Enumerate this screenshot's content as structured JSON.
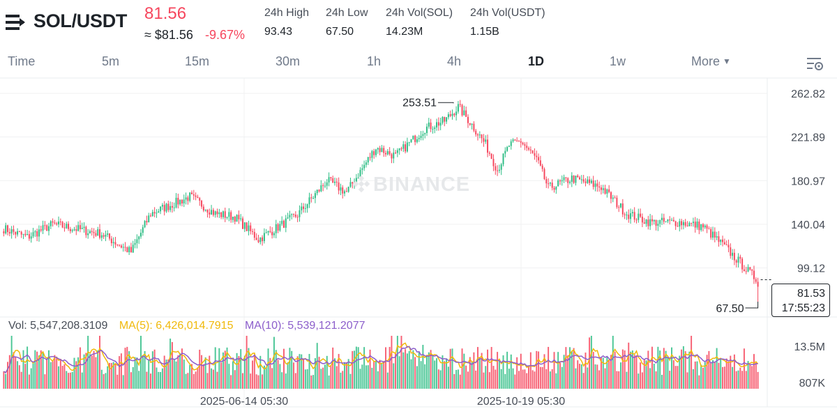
{
  "header": {
    "pair": "SOL/USDT",
    "last_price": "81.56",
    "approx_usd": "≈ $81.56",
    "change_pct": "-9.67%",
    "stats": [
      {
        "label": "24h High",
        "value": "93.43"
      },
      {
        "label": "24h Low",
        "value": "67.50"
      },
      {
        "label": "24h Vol(SOL)",
        "value": "14.23M"
      },
      {
        "label": "24h Vol(USDT)",
        "value": "1.15B"
      }
    ]
  },
  "intervals": {
    "items": [
      "Time",
      "5m",
      "15m",
      "30m",
      "1h",
      "4h",
      "1D",
      "1w",
      "More"
    ],
    "active": "1D"
  },
  "watermark": "BINANCE",
  "price_axis": [
    "262.82",
    "221.89",
    "180.97",
    "140.04",
    "99.12"
  ],
  "volume_axis": [
    "13.5M",
    "807K"
  ],
  "time_axis": [
    "2025-06-14 05:30",
    "2025-10-19 05:30"
  ],
  "annotations": {
    "high": "253.51",
    "low": "67.50"
  },
  "price_tag": {
    "price": "81.53",
    "countdown": "17:55:23"
  },
  "volume_legend": {
    "vol": "Vol: 5,547,208.3109",
    "ma5": "MA(5): 6,426,014.7915",
    "ma10": "MA(10): 5,539,121.2077"
  },
  "colors": {
    "up": "#2ebd85",
    "down": "#f6465d",
    "ma5": "#f0b90b",
    "ma10": "#8c5ecb",
    "text": "#1e2329",
    "muted": "#707a8a"
  },
  "chart_data": {
    "type": "candlestick",
    "series_close_anchors": [
      {
        "x": 0,
        "y": 136
      },
      {
        "x": 12,
        "y": 128
      },
      {
        "x": 25,
        "y": 140
      },
      {
        "x": 50,
        "y": 131
      },
      {
        "x": 65,
        "y": 114
      },
      {
        "x": 75,
        "y": 150
      },
      {
        "x": 95,
        "y": 166
      },
      {
        "x": 108,
        "y": 150
      },
      {
        "x": 118,
        "y": 147
      },
      {
        "x": 130,
        "y": 126
      },
      {
        "x": 150,
        "y": 149
      },
      {
        "x": 165,
        "y": 181
      },
      {
        "x": 175,
        "y": 170
      },
      {
        "x": 190,
        "y": 212
      },
      {
        "x": 200,
        "y": 204
      },
      {
        "x": 215,
        "y": 230
      },
      {
        "x": 225,
        "y": 237
      },
      {
        "x": 232,
        "y": 250
      },
      {
        "x": 238,
        "y": 236
      },
      {
        "x": 246,
        "y": 215
      },
      {
        "x": 252,
        "y": 191
      },
      {
        "x": 258,
        "y": 214
      },
      {
        "x": 264,
        "y": 218
      },
      {
        "x": 272,
        "y": 201
      },
      {
        "x": 278,
        "y": 174
      },
      {
        "x": 290,
        "y": 183
      },
      {
        "x": 305,
        "y": 175
      },
      {
        "x": 318,
        "y": 150
      },
      {
        "x": 330,
        "y": 142
      },
      {
        "x": 345,
        "y": 142
      },
      {
        "x": 357,
        "y": 138
      },
      {
        "x": 368,
        "y": 119
      },
      {
        "x": 380,
        "y": 96
      },
      {
        "x": 385,
        "y": 87
      }
    ],
    "high": 253.51,
    "low_24h": 67.5,
    "last": 81.53,
    "ylim": [
      60,
      270
    ],
    "price_ticks": [
      99.12,
      140.04,
      180.97,
      221.89,
      262.82
    ],
    "volume_ticks": [
      "807K",
      "13.5M"
    ],
    "x_ticks": [
      "2025-06-14 05:30",
      "2025-10-19 05:30"
    ]
  }
}
